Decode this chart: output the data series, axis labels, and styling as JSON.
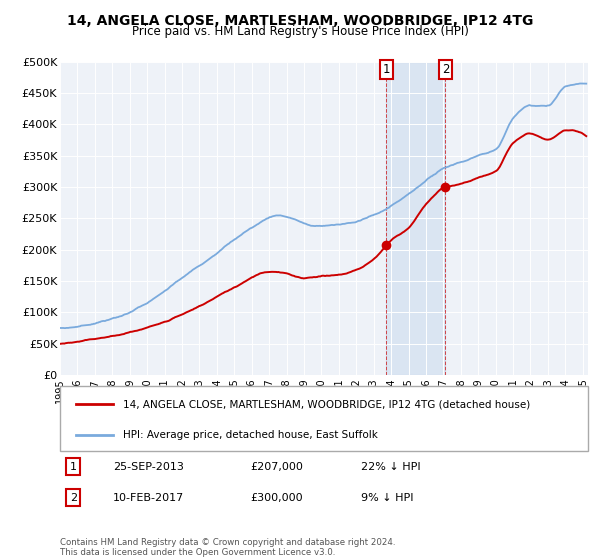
{
  "title": "14, ANGELA CLOSE, MARTLESHAM, WOODBRIDGE, IP12 4TG",
  "subtitle": "Price paid vs. HM Land Registry's House Price Index (HPI)",
  "red_label": "14, ANGELA CLOSE, MARTLESHAM, WOODBRIDGE, IP12 4TG (detached house)",
  "blue_label": "HPI: Average price, detached house, East Suffolk",
  "transactions": [
    {
      "num": "1",
      "date": "25-SEP-2013",
      "price": 207000,
      "hpi_diff": "22% ↓ HPI",
      "year": 2013.73
    },
    {
      "num": "2",
      "date": "10-FEB-2017",
      "price": 300000,
      "hpi_diff": "9% ↓ HPI",
      "year": 2017.12
    }
  ],
  "copyright": "Contains HM Land Registry data © Crown copyright and database right 2024.\nThis data is licensed under the Open Government Licence v3.0.",
  "ylim": [
    0,
    500000
  ],
  "yticks": [
    0,
    50000,
    100000,
    150000,
    200000,
    250000,
    300000,
    350000,
    400000,
    450000,
    500000
  ],
  "ytick_labels": [
    "£0",
    "£50K",
    "£100K",
    "£150K",
    "£200K",
    "£250K",
    "£300K",
    "£350K",
    "£400K",
    "£450K",
    "£500K"
  ],
  "hpi_color": "#7aaadd",
  "price_color": "#cc0000",
  "bg_plot": "#eef2f8",
  "transaction_shade_color": "#c8daee",
  "transaction_shade_alpha": 0.5,
  "t1_year": 2013.73,
  "t2_year": 2017.12,
  "t1_price": 207000,
  "t2_price": 300000,
  "xlim_start": 1995,
  "xlim_end": 2025.3
}
